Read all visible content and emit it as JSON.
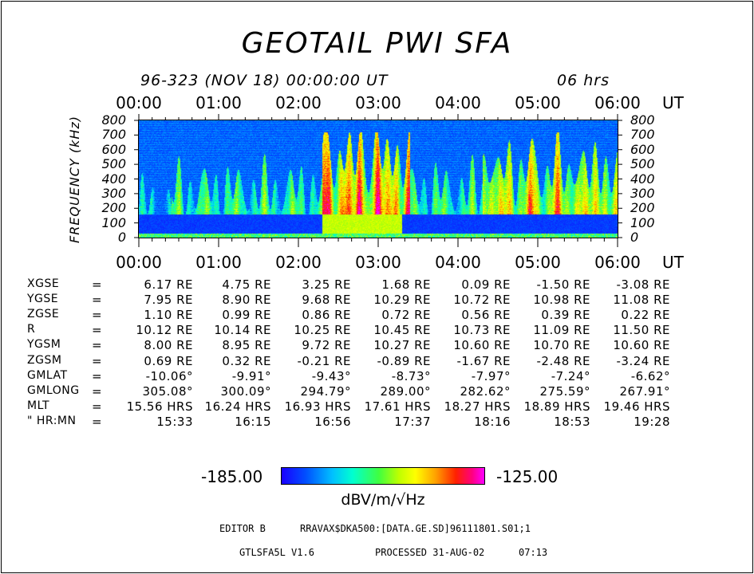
{
  "title": "GEOTAIL  PWI  SFA",
  "subtitle": {
    "date": "96-323 (NOV 18) 00:00:00 UT",
    "duration": "06 hrs"
  },
  "chart_data": {
    "type": "heatmap",
    "title": "GEOTAIL  PWI  SFA",
    "x_ticks": [
      "00:00",
      "01:00",
      "02:00",
      "03:00",
      "04:00",
      "05:00",
      "06:00"
    ],
    "x_unit": "UT",
    "ylabel": "FREQUENCY (kHz)",
    "y_ticks": [
      "800",
      "700",
      "600",
      "500",
      "400",
      "300",
      "200",
      "100",
      "0"
    ],
    "ylim": [
      0,
      800
    ],
    "xlim_hours": [
      0,
      6
    ],
    "colorbar": {
      "min": "-185.00",
      "max": "-125.00",
      "unit": "dBV/m/√Hz"
    }
  },
  "ephemeris": {
    "rows": [
      {
        "label": "XGSE",
        "eq": "=",
        "values": [
          "6.17 RE",
          "4.75 RE",
          "3.25 RE",
          "1.68 RE",
          "0.09 RE",
          "-1.50 RE",
          "-3.08 RE"
        ]
      },
      {
        "label": "YGSE",
        "eq": "=",
        "values": [
          "7.95 RE",
          "8.90 RE",
          "9.68 RE",
          "10.29 RE",
          "10.72 RE",
          "10.98 RE",
          "11.08 RE"
        ]
      },
      {
        "label": "ZGSE",
        "eq": "=",
        "values": [
          "1.10 RE",
          "0.99 RE",
          "0.86 RE",
          "0.72 RE",
          "0.56 RE",
          "0.39 RE",
          "0.22 RE"
        ]
      },
      {
        "label": "R",
        "eq": "=",
        "values": [
          "10.12 RE",
          "10.14 RE",
          "10.25 RE",
          "10.45 RE",
          "10.73 RE",
          "11.09 RE",
          "11.50 RE"
        ]
      },
      {
        "label": "YGSM",
        "eq": "=",
        "values": [
          "8.00 RE",
          "8.95 RE",
          "9.72 RE",
          "10.27 RE",
          "10.60 RE",
          "10.70 RE",
          "10.60 RE"
        ]
      },
      {
        "label": "ZGSM",
        "eq": "=",
        "values": [
          "0.69 RE",
          "0.32 RE",
          "-0.21 RE",
          "-0.89 RE",
          "-1.67 RE",
          "-2.48 RE",
          "-3.24 RE"
        ]
      },
      {
        "label": "GMLAT",
        "eq": "=",
        "values": [
          "-10.06°",
          "-9.91°",
          "-9.43°",
          "-8.73°",
          "-7.97°",
          "-7.24°",
          "-6.62°"
        ]
      },
      {
        "label": "GMLONG",
        "eq": "=",
        "values": [
          "305.08°",
          "300.09°",
          "294.79°",
          "289.00°",
          "282.62°",
          "275.59°",
          "267.91°"
        ]
      },
      {
        "label": "MLT",
        "eq": "=",
        "values": [
          "15.56 HRS",
          "16.24 HRS",
          "16.93 HRS",
          "17.61 HRS",
          "18.27 HRS",
          "18.89 HRS",
          "19.46 HRS"
        ]
      },
      {
        "label": "\" HR:MN",
        "eq": "=",
        "values": [
          "15:33",
          "16:15",
          "16:56",
          "17:37",
          "18:16",
          "18:53",
          "19:28"
        ]
      }
    ]
  },
  "footer": {
    "editor": "EDITOR B",
    "file": "RRAVAX$DKA500:[DATA.GE.SD]96111801.S01;1",
    "program": "GTLSFA5L V1.6",
    "processed": "PROCESSED 31-AUG-02",
    "time": "07:13"
  },
  "colors": {
    "background": "#0008b0",
    "low": "#0000ff",
    "mid": "#00ff80",
    "high": "#ff0000"
  }
}
